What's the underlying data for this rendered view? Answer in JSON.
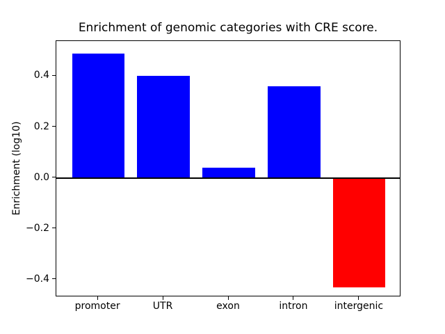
{
  "figure": {
    "title": "Enrichment of genomic categories with CRE score.",
    "ylabel": "Enrichment (log10)",
    "background_color": "#ffffff",
    "axis_color": "#000000"
  },
  "chart_data": {
    "type": "bar",
    "title": "Enrichment of genomic categories with CRE score.",
    "xlabel": "",
    "ylabel": "Enrichment (log10)",
    "categories": [
      "promoter",
      "UTR",
      "exon",
      "intron",
      "intergenic"
    ],
    "values": [
      0.49,
      0.4,
      0.04,
      0.36,
      -0.43
    ],
    "bar_colors": [
      "#0000ff",
      "#0000ff",
      "#0000ff",
      "#0000ff",
      "#ff0000"
    ],
    "positive_color": "#0000ff",
    "negative_color": "#ff0000",
    "bar_width": 0.8,
    "ylim": [
      -0.469,
      0.538
    ],
    "yticks": [
      -0.4,
      -0.2,
      0.0,
      0.2,
      0.4
    ],
    "ytick_labels": [
      "−0.4",
      "−0.2",
      "0.0",
      "0.2",
      "0.4"
    ],
    "zero_line": true,
    "grid": false,
    "legend": null
  }
}
